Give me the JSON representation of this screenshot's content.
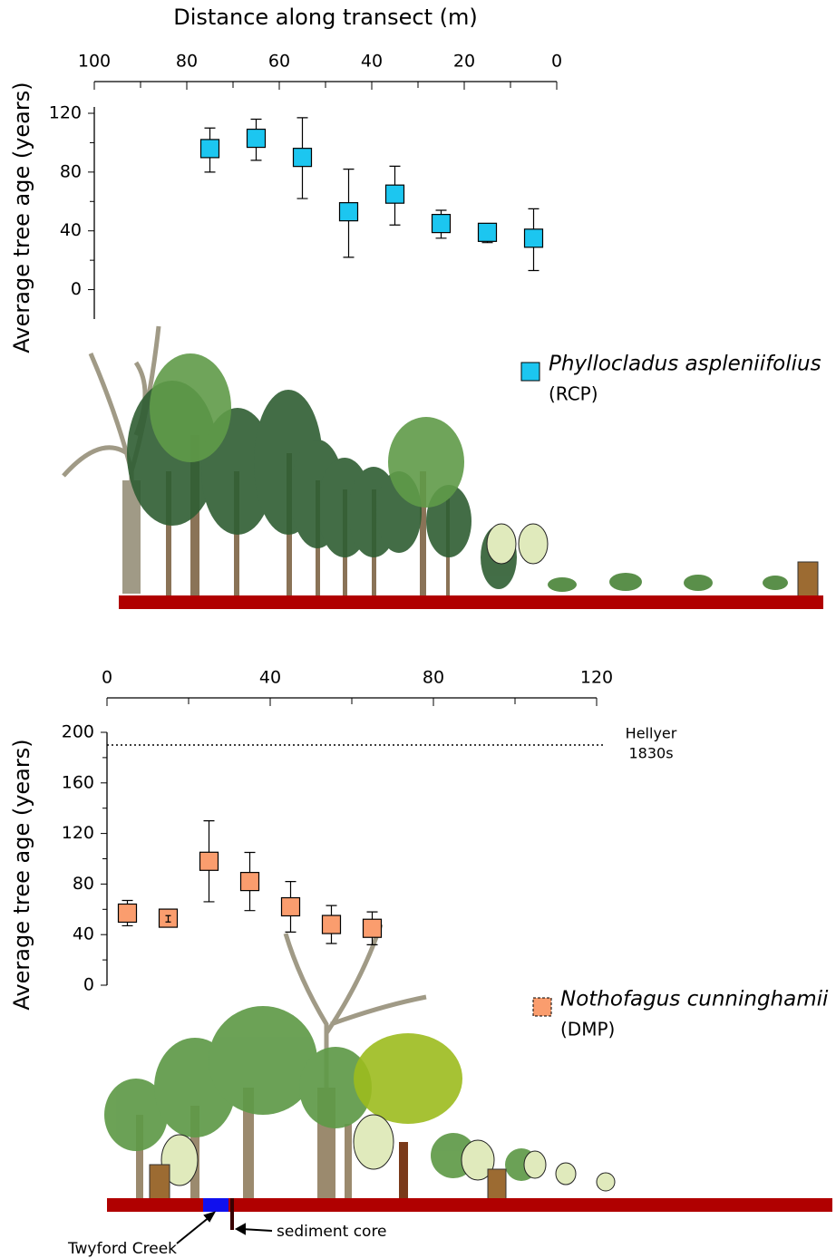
{
  "chart_data": [
    {
      "type": "scatter",
      "x_label": "Distance along transect (m)",
      "y_label": "Average tree age (years)",
      "xlim": [
        100,
        0
      ],
      "xticks": [
        100,
        80,
        60,
        40,
        20,
        0
      ],
      "xminorticks": [
        90,
        70,
        50,
        30,
        10
      ],
      "ylim": [
        -20,
        120
      ],
      "yticks": [
        0,
        40,
        80,
        120
      ],
      "yminorticks": [
        20,
        60,
        100
      ],
      "series": [
        {
          "name": "Phyllocladus aspleniifolius",
          "code": "(RCP)",
          "color": "#1cc6f0",
          "x": [
            75,
            65,
            55,
            45,
            35,
            25,
            15,
            5
          ],
          "values": [
            96,
            103,
            90,
            53,
            65,
            45,
            39,
            35
          ],
          "lower": [
            80,
            88,
            62,
            22,
            44,
            35,
            32,
            13
          ],
          "upper": [
            110,
            116,
            117,
            82,
            84,
            54,
            44,
            55
          ]
        }
      ]
    },
    {
      "type": "scatter",
      "y_label": "Average tree age (years)",
      "xlim": [
        0,
        120
      ],
      "xticks": [
        0,
        40,
        80,
        120
      ],
      "xminorticks": [
        20,
        60,
        100
      ],
      "ylim": [
        0,
        200
      ],
      "yticks": [
        0,
        40,
        80,
        120,
        160,
        200
      ],
      "yminorticks": [
        20,
        60,
        100,
        140,
        180
      ],
      "reference_line": {
        "value": 190,
        "label": [
          "Hellyer",
          "1830s"
        ]
      },
      "annotations": [
        "Twyford Creek",
        "sediment core"
      ],
      "series": [
        {
          "name": "Nothofagus cunninghamii",
          "code": "(DMP)",
          "color": "#fa9d6e",
          "x": [
            5,
            15,
            25,
            35,
            45,
            55,
            65
          ],
          "values": [
            57,
            53,
            98,
            82,
            62,
            48,
            45
          ],
          "lower": [
            47,
            50,
            66,
            59,
            42,
            33,
            32
          ],
          "upper": [
            67,
            55,
            130,
            105,
            82,
            63,
            58
          ]
        }
      ]
    }
  ]
}
